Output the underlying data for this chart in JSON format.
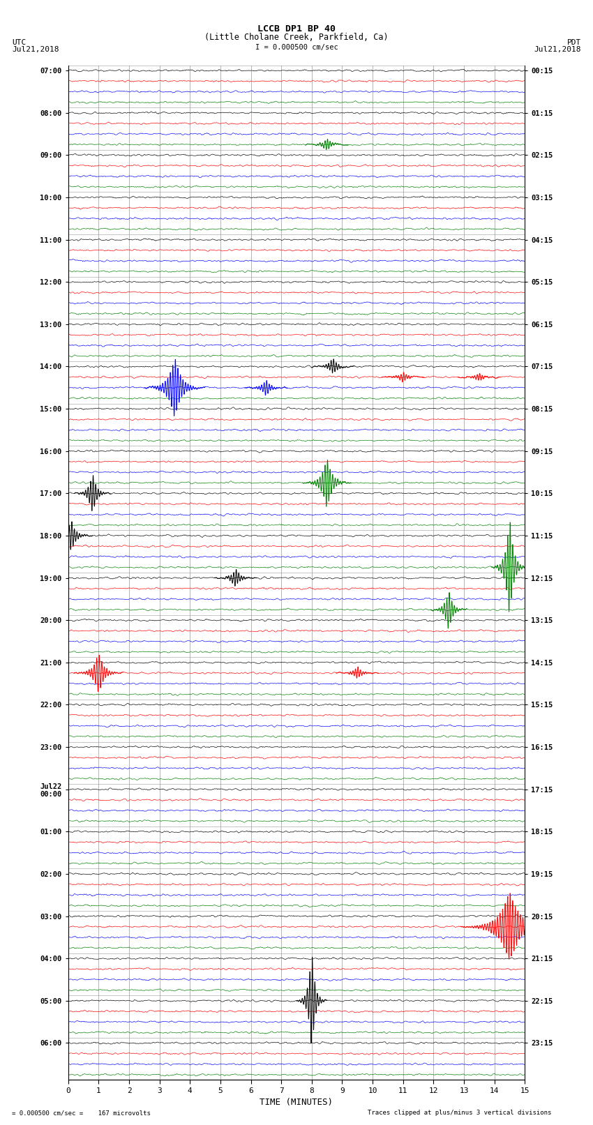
{
  "title_line1": "LCCB DP1 BP 40",
  "title_line2": "(Little Cholane Creek, Parkfield, Ca)",
  "scale_label": "I = 0.000500 cm/sec",
  "footer_scale": "= 0.000500 cm/sec =    167 microvolts",
  "footer_right": "Traces clipped at plus/minus 3 vertical divisions",
  "label_utc": "UTC",
  "label_pdt": "PDT",
  "date_left": "Jul21,2018",
  "date_right": "Jul21,2018",
  "x_max": 15,
  "background_color": "#ffffff",
  "grid_color": "#999999",
  "trace_colors": [
    "black",
    "red",
    "blue",
    "green"
  ],
  "left_hour_labels": [
    "07:00",
    "08:00",
    "09:00",
    "10:00",
    "11:00",
    "12:00",
    "13:00",
    "14:00",
    "15:00",
    "16:00",
    "17:00",
    "18:00",
    "19:00",
    "20:00",
    "21:00",
    "22:00",
    "23:00",
    "Jul22\n00:00",
    "01:00",
    "02:00",
    "03:00",
    "04:00",
    "05:00",
    "06:00"
  ],
  "right_hour_labels": [
    "00:15",
    "01:15",
    "02:15",
    "03:15",
    "04:15",
    "05:15",
    "06:15",
    "07:15",
    "08:15",
    "09:15",
    "10:15",
    "11:15",
    "12:15",
    "13:15",
    "14:15",
    "15:15",
    "16:15",
    "17:15",
    "18:15",
    "19:15",
    "20:15",
    "21:15",
    "22:15",
    "23:15"
  ],
  "n_hours": 24,
  "traces_per_hour": 4,
  "noise_amp": 0.12,
  "seed": 12345
}
